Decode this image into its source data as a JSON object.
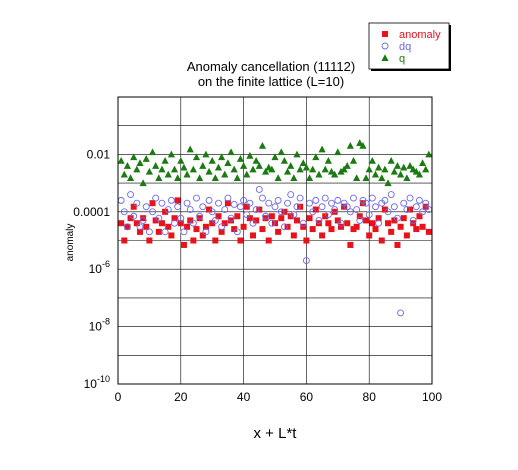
{
  "chart_data": {
    "type": "scatter",
    "title": [
      "Anomaly cancellation (11112)",
      "on the finite lattice (L=10)"
    ],
    "xlabel": "x + L*t",
    "ylabel": "anomaly",
    "xlim": [
      0,
      100
    ],
    "xticks": [
      0,
      20,
      40,
      60,
      80,
      100
    ],
    "ylim": [
      1e-10,
      1
    ],
    "yscale": "log",
    "yticks": [
      {
        "value": 1e-10,
        "base": "10",
        "exp": "-10"
      },
      {
        "value": 1e-08,
        "base": "10",
        "exp": "-8"
      },
      {
        "value": 1e-06,
        "base": "10",
        "exp": "-6"
      },
      {
        "value": 0.0001,
        "label": "0.0001"
      },
      {
        "value": 0.01,
        "label": "0.01"
      }
    ],
    "grid": true,
    "legend": "top-right",
    "series": [
      {
        "name": "anomaly",
        "marker": "square-filled",
        "color": "#e8121a",
        "x": [
          1,
          2,
          3,
          4,
          5,
          6,
          7,
          8,
          9,
          10,
          11,
          12,
          13,
          14,
          15,
          16,
          17,
          18,
          19,
          20,
          21,
          22,
          23,
          24,
          25,
          26,
          27,
          28,
          29,
          30,
          31,
          32,
          33,
          34,
          35,
          36,
          37,
          38,
          39,
          40,
          41,
          42,
          43,
          44,
          45,
          46,
          47,
          48,
          49,
          50,
          51,
          52,
          53,
          54,
          55,
          56,
          57,
          58,
          59,
          60,
          61,
          62,
          63,
          64,
          65,
          66,
          67,
          68,
          69,
          70,
          71,
          72,
          73,
          74,
          75,
          76,
          77,
          78,
          79,
          80,
          81,
          82,
          83,
          84,
          85,
          86,
          87,
          88,
          89,
          90,
          91,
          92,
          93,
          94,
          95,
          96,
          97,
          98,
          99
        ],
        "y": [
          4e-05,
          1e-05,
          3e-05,
          6e-05,
          0.00015,
          4e-05,
          2e-05,
          6e-05,
          3e-05,
          1e-05,
          0.0002,
          5e-05,
          2e-05,
          4e-05,
          0.0001,
          3e-05,
          1.5e-05,
          6e-05,
          0.00025,
          4e-05,
          7e-06,
          3e-05,
          5e-05,
          1e-05,
          2.5e-05,
          6e-05,
          1.5e-05,
          3e-05,
          0.00012,
          4e-05,
          1e-05,
          7e-05,
          2e-05,
          4e-05,
          0.0002,
          5e-05,
          2.5e-05,
          7e-05,
          1e-05,
          3e-05,
          0.00015,
          6e-05,
          1.5e-05,
          5e-05,
          0.00012,
          2.5e-05,
          6e-05,
          1e-05,
          7e-05,
          4e-05,
          2e-05,
          6e-05,
          0.0001,
          3e-05,
          7e-05,
          1.5e-05,
          5e-05,
          0.00015,
          3e-05,
          1e-05,
          6e-05,
          2.5e-05,
          0.00012,
          4e-05,
          1.5e-05,
          7e-05,
          4e-05,
          2.5e-05,
          0.0001,
          5e-05,
          3e-05,
          0.00015,
          4e-05,
          7e-06,
          2.5e-05,
          3e-05,
          7e-05,
          0.0002,
          5e-05,
          1.5e-05,
          4e-05,
          2.5e-05,
          6e-05,
          1e-05,
          0.00012,
          4e-05,
          2e-05,
          5e-05,
          7e-06,
          3e-05,
          6e-05,
          1.5e-05,
          0.00012,
          4e-05,
          2.5e-05,
          7e-05,
          3e-05,
          0.00015,
          2e-05
        ]
      },
      {
        "name": "dq",
        "marker": "circle-open",
        "color": "#6a6af0",
        "x": [
          1,
          2,
          3,
          4,
          5,
          6,
          7,
          8,
          9,
          10,
          11,
          12,
          13,
          14,
          15,
          16,
          17,
          18,
          19,
          20,
          21,
          22,
          23,
          24,
          25,
          26,
          27,
          28,
          29,
          30,
          31,
          32,
          33,
          34,
          35,
          36,
          37,
          38,
          39,
          40,
          41,
          42,
          43,
          44,
          45,
          46,
          47,
          48,
          49,
          50,
          51,
          52,
          53,
          54,
          55,
          56,
          57,
          58,
          59,
          60,
          61,
          62,
          63,
          64,
          65,
          66,
          67,
          68,
          69,
          70,
          71,
          72,
          73,
          74,
          75,
          76,
          77,
          78,
          79,
          80,
          81,
          82,
          83,
          84,
          85,
          86,
          87,
          88,
          89,
          90,
          91,
          92,
          93,
          94,
          95,
          96,
          97,
          98,
          99
        ],
        "y": [
          0.00025,
          0.0001,
          3e-05,
          0.0004,
          7e-05,
          0.0002,
          3e-05,
          5e-05,
          0.00015,
          2e-05,
          0.0001,
          0.0003,
          6e-05,
          0.0002,
          2e-05,
          0.00012,
          0.00025,
          4e-05,
          0.00015,
          6e-05,
          2e-05,
          0.0002,
          0.00012,
          4e-05,
          0.0003,
          7e-05,
          0.00015,
          2e-05,
          0.00025,
          0.0001,
          5e-05,
          0.0002,
          3e-05,
          0.00012,
          0.0003,
          6e-05,
          0.00018,
          2e-05,
          0.00015,
          0.00025,
          8e-05,
          0.0002,
          4e-05,
          0.00012,
          0.0006,
          0.0003,
          7e-05,
          0.0002,
          4e-05,
          0.00015,
          0.00025,
          0.0001,
          3e-05,
          0.0002,
          0.0004,
          8e-05,
          0.00015,
          0.0003,
          4e-05,
          2e-06,
          0.0002,
          0.0001,
          0.00025,
          5e-05,
          0.00015,
          0.0003,
          8e-05,
          0.0002,
          0.00012,
          0.00025,
          4e-05,
          0.0002,
          0.00015,
          0.0001,
          0.0003,
          0.00012,
          5e-05,
          0.00025,
          0.0002,
          8e-05,
          0.0003,
          0.00015,
          4e-05,
          0.0002,
          0.00025,
          0.0001,
          0.0004,
          0.00015,
          6e-05,
          3e-08,
          0.0002,
          0.00012,
          0.0003,
          5e-05,
          0.00015,
          0.00025,
          0.0001,
          0.0002,
          0.00012
        ]
      },
      {
        "name": "q",
        "marker": "triangle-filled",
        "color": "#1b7a12",
        "x": [
          1,
          2,
          3,
          4,
          5,
          6,
          7,
          8,
          9,
          10,
          11,
          12,
          13,
          14,
          15,
          16,
          17,
          18,
          19,
          20,
          21,
          22,
          23,
          24,
          25,
          26,
          27,
          28,
          29,
          30,
          31,
          32,
          33,
          34,
          35,
          36,
          37,
          38,
          39,
          40,
          41,
          42,
          43,
          44,
          45,
          46,
          47,
          48,
          49,
          50,
          51,
          52,
          53,
          54,
          55,
          56,
          57,
          58,
          59,
          60,
          61,
          62,
          63,
          64,
          65,
          66,
          67,
          68,
          69,
          70,
          71,
          72,
          73,
          74,
          75,
          76,
          77,
          78,
          79,
          80,
          81,
          82,
          83,
          84,
          85,
          86,
          87,
          88,
          89,
          90,
          91,
          92,
          93,
          94,
          95,
          96,
          97,
          98,
          99
        ],
        "y": [
          0.006,
          0.002,
          0.004,
          0.0015,
          0.008,
          0.003,
          0.005,
          0.001,
          0.007,
          0.0025,
          0.012,
          0.004,
          0.0015,
          0.003,
          0.006,
          0.002,
          0.01,
          0.003,
          0.0015,
          0.006,
          0.0035,
          0.002,
          0.015,
          0.003,
          0.008,
          0.0015,
          0.004,
          0.01,
          0.0025,
          0.006,
          0.0015,
          0.0035,
          0.008,
          0.002,
          0.005,
          0.012,
          0.003,
          0.0015,
          0.007,
          0.004,
          0.002,
          0.009,
          0.003,
          0.006,
          0.004,
          0.02,
          0.0025,
          0.0035,
          0.003,
          0.008,
          0.0015,
          0.012,
          0.006,
          0.0025,
          0.004,
          0.0015,
          0.01,
          0.003,
          0.005,
          0.0035,
          0.0015,
          0.003,
          0.008,
          0.002,
          0.015,
          0.003,
          0.006,
          0.0025,
          0.002,
          0.012,
          0.0025,
          0.003,
          0.004,
          0.02,
          0.006,
          0.0015,
          0.025,
          0.02,
          0.0015,
          0.003,
          0.006,
          0.002,
          0.0035,
          0.0015,
          0.003,
          0.001,
          0.006,
          0.0025,
          0.004,
          0.002,
          0.0035,
          0.0015,
          0.004,
          0.003,
          0.0025,
          0.002,
          0.005,
          0.003,
          0.01
        ]
      }
    ]
  }
}
